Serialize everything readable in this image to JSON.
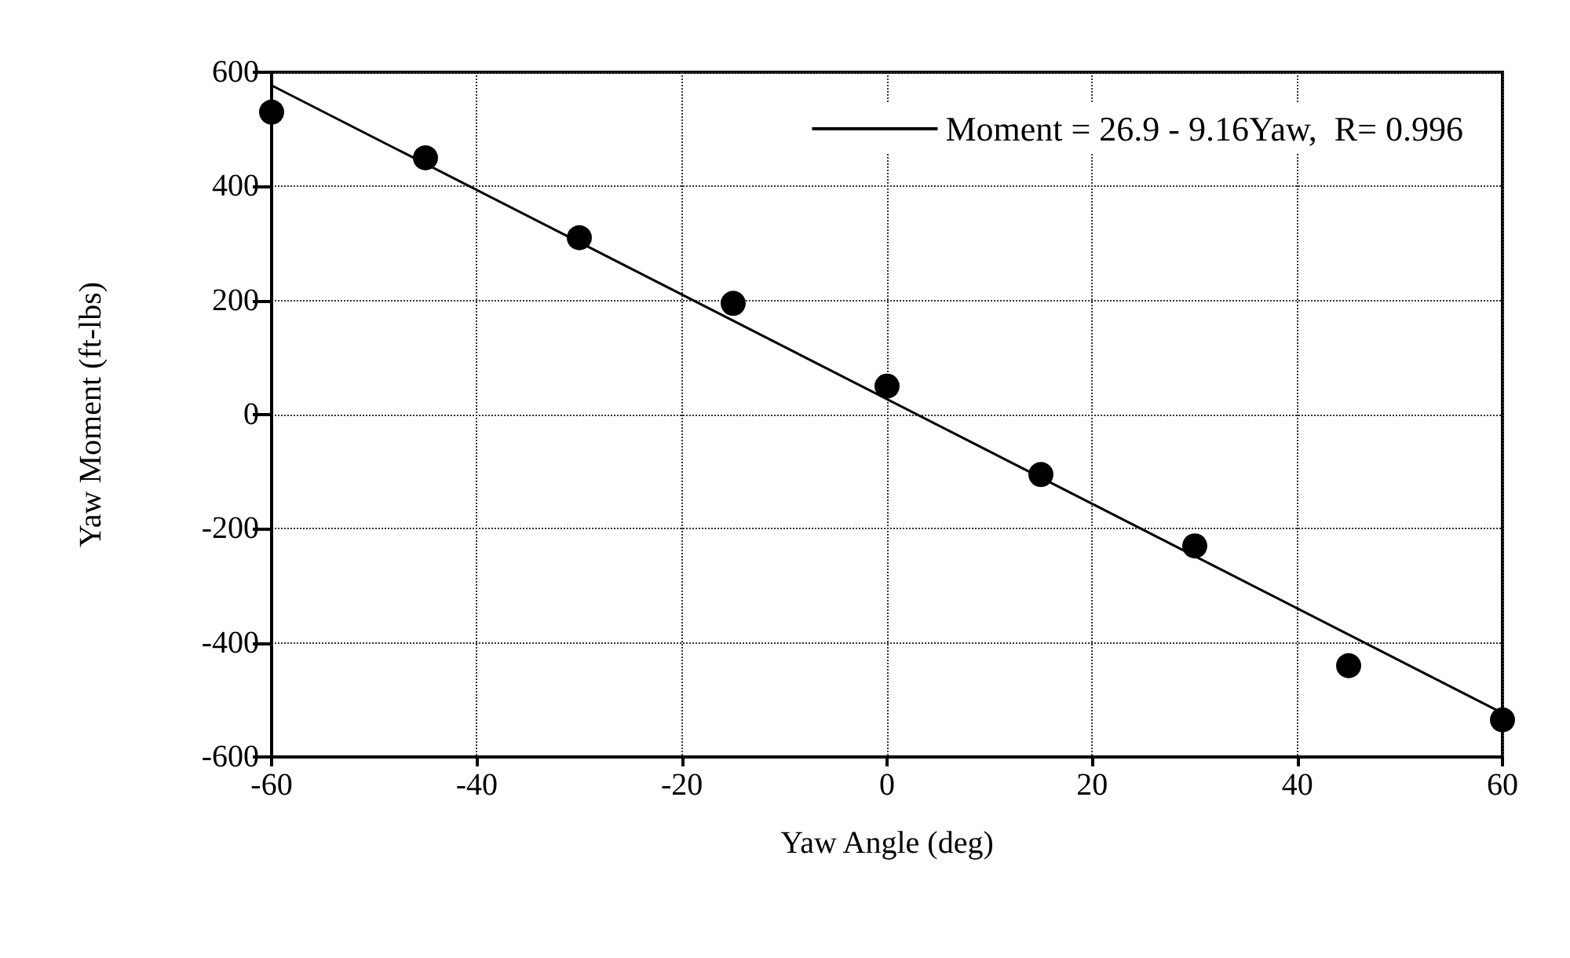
{
  "chart_data": {
    "type": "scatter",
    "xlabel": "Yaw Angle (deg)",
    "ylabel": "Yaw Moment (ft-lbs)",
    "x": [
      -60,
      -45,
      -30,
      -15,
      0,
      15,
      30,
      45,
      60
    ],
    "series": [
      {
        "color": "#000000",
        "marker": "circle",
        "values": [
          530,
          450,
          310,
          195,
          50,
          -105,
          -230,
          -440,
          -535
        ]
      },
      {
        "type": "line",
        "name": "Moment = 26.9 - 9.16Yaw,  R= 0.996",
        "color": "#000000",
        "marker": "none",
        "line_style": "solid",
        "x": [
          -60,
          60
        ],
        "values": [
          577,
          -523
        ]
      }
    ],
    "xlim": [
      -60,
      60
    ],
    "xticks": [
      -60,
      -40,
      -20,
      0,
      20,
      40,
      60
    ],
    "ylim": [
      -600,
      600
    ],
    "yticks": [
      -600,
      -400,
      -200,
      0,
      200,
      400,
      600
    ],
    "grid": true,
    "legend": "top right"
  }
}
